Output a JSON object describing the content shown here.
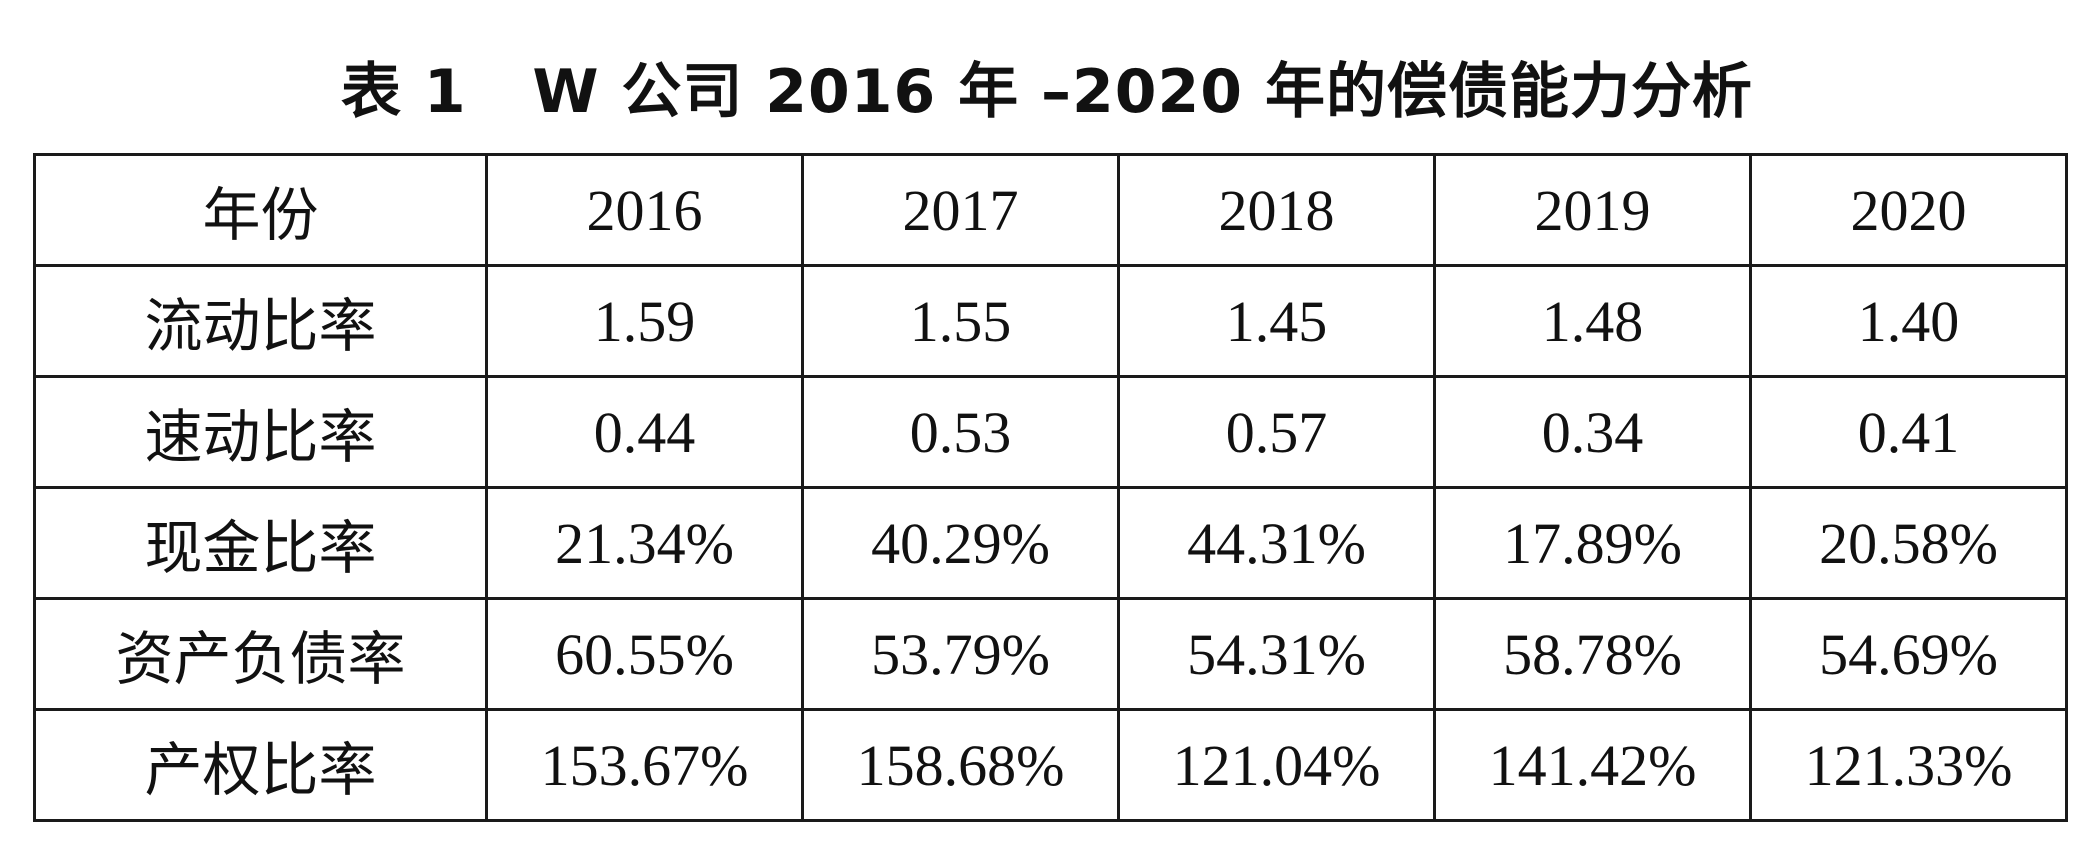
{
  "title": "表 1   W 公司 2016 年 –2020 年的偿债能力分析",
  "header": {
    "label": "年份",
    "years": [
      "2016",
      "2017",
      "2018",
      "2019",
      "2020"
    ]
  },
  "rows": [
    {
      "label": "流动比率",
      "values": [
        "1.59",
        "1.55",
        "1.45",
        "1.48",
        "1.40"
      ]
    },
    {
      "label": "速动比率",
      "values": [
        "0.44",
        "0.53",
        "0.57",
        "0.34",
        "0.41"
      ]
    },
    {
      "label": "现金比率",
      "values": [
        "21.34%",
        "40.29%",
        "44.31%",
        "17.89%",
        "20.58%"
      ]
    },
    {
      "label": "资产负债率",
      "values": [
        "60.55%",
        "53.79%",
        "54.31%",
        "58.78%",
        "54.69%"
      ]
    },
    {
      "label": "产权比率",
      "values": [
        "153.67%",
        "158.68%",
        "121.04%",
        "141.42%",
        "121.33%"
      ]
    }
  ]
}
